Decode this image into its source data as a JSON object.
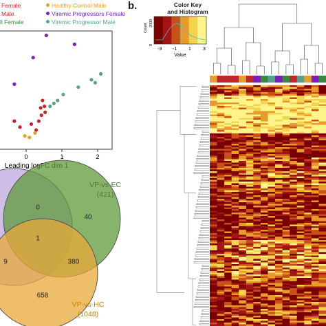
{
  "panel_b_label": "b.",
  "legend": [
    {
      "text": "Female",
      "color": "#c0272d"
    },
    {
      "text": "Healthy Control Male",
      "color": "#e0a030"
    },
    {
      "text": "Male",
      "color": "#c0272d"
    },
    {
      "text": "Viremic Progressors Female",
      "color": "#7a1fb8"
    },
    {
      "text": "ll Female",
      "color": "#3a8a3a"
    },
    {
      "text": "Viremic Progressor Male",
      "color": "#5a9e8e"
    }
  ],
  "mds": {
    "xlabel": "Leading logFC dim 1",
    "x_ticks": [
      "0",
      "1",
      "2"
    ]
  },
  "chart_data": {
    "type": "scatter",
    "xlabel": "Leading logFC dim 1",
    "xlim": [
      -0.5,
      2.5
    ],
    "ylim": [
      -1.5,
      2.5
    ],
    "series": [
      {
        "name": "Viremic Progressors Female",
        "color": "#7a1fb8",
        "points": [
          [
            0.4,
            1.6
          ],
          [
            0.75,
            2.35
          ],
          [
            1.5,
            2.05
          ],
          [
            -0.1,
            0.7
          ]
        ]
      },
      {
        "name": "Viremic Progressor Male",
        "color": "#5a9e8e",
        "points": [
          [
            2.2,
            1.05
          ],
          [
            1.95,
            0.85
          ],
          [
            1.6,
            0.6
          ],
          [
            1.2,
            0.35
          ],
          [
            1.05,
            0.15
          ],
          [
            0.95,
            0.05
          ],
          [
            0.85,
            -0.05
          ],
          [
            2.05,
            0.75
          ]
        ]
      },
      {
        "name": "Male",
        "color": "#c0272d",
        "points": [
          [
            0.65,
            0.15
          ],
          [
            0.7,
            -0.05
          ],
          [
            0.6,
            -0.1
          ],
          [
            0.72,
            -0.25
          ],
          [
            0.62,
            -0.35
          ],
          [
            0.55,
            -0.55
          ],
          [
            0.35,
            -0.65
          ],
          [
            0.48,
            -0.85
          ],
          [
            0.05,
            -0.75
          ],
          [
            -0.1,
            -0.55
          ]
        ]
      },
      {
        "name": "Healthy Control Male",
        "color": "#e0a030",
        "points": [
          [
            0.18,
            -1.05
          ],
          [
            0.3,
            -1.1
          ],
          [
            0.45,
            -0.95
          ]
        ]
      }
    ]
  },
  "venn": {
    "sets": [
      {
        "label": "VP-vs-EC",
        "count": "(421)",
        "color": "#5a8f2f"
      },
      {
        "label": "VP-vs-HC",
        "count": "(1048)",
        "color": "#d08a00"
      }
    ],
    "numbers": [
      "0",
      "40",
      "1",
      "9",
      "380",
      "658"
    ]
  },
  "heatmap": {
    "key_title": "Color Key",
    "key_subtitle": "and Histogram",
    "key_ylabel": "Count",
    "key_y_ticks": [
      "0",
      "2000"
    ],
    "key_x_ticks": [
      "-3",
      "-1",
      "1",
      "3"
    ],
    "key_xlabel": "Value",
    "colors": [
      "#7a0000",
      "#a31414",
      "#c8501a",
      "#e89a2a",
      "#f4d34e",
      "#fff48a"
    ],
    "group_colors": [
      "#e0a030",
      "#c0272d",
      "#c0272d",
      "#c0272d",
      "#e0a030",
      "#c0272d",
      "#7a1fb8",
      "#3a8a3a",
      "#5a9e8e",
      "#7a1fb8",
      "#3a8a3a",
      "#c0272d",
      "#5a9e8e",
      "#e0a030",
      "#7a1fb8",
      "#3a8a3a"
    ]
  }
}
